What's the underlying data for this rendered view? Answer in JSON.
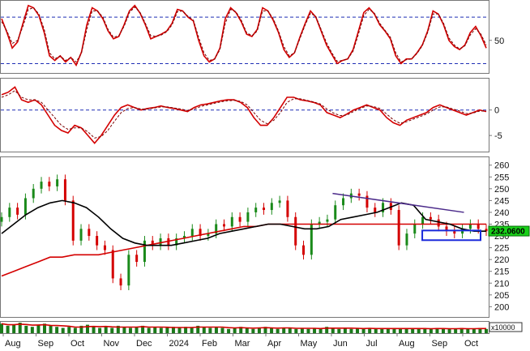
{
  "chart_data": [
    {
      "type": "line",
      "panel": "oscillator-top",
      "ylim": [
        10,
        100
      ],
      "y_ticks": [
        "50"
      ],
      "reference_lines": [
        80,
        20
      ],
      "series": [
        {
          "color": "#d40000",
          "values": [
            78,
            60,
            40,
            48,
            72,
            95,
            92,
            82,
            60,
            30,
            24,
            30,
            22,
            28,
            18,
            35,
            70,
            92,
            88,
            78,
            62,
            52,
            55,
            70,
            88,
            95,
            85,
            70,
            52,
            55,
            58,
            62,
            72,
            90,
            88,
            80,
            75,
            50,
            30,
            22,
            26,
            40,
            78,
            92,
            86,
            74,
            58,
            55,
            64,
            92,
            88,
            76,
            60,
            38,
            28,
            34,
            54,
            72,
            88,
            80,
            62,
            44,
            32,
            20,
            24,
            26,
            38,
            62,
            86,
            92,
            84,
            70,
            62,
            52,
            30,
            20,
            26,
            26,
            34,
            44,
            62,
            88,
            84,
            70,
            50,
            42,
            38,
            44,
            60,
            68,
            56,
            40
          ]
        },
        {
          "color": "#7a0000",
          "dashed": true,
          "values": [
            74,
            62,
            46,
            50,
            68,
            90,
            92,
            84,
            64,
            34,
            26,
            30,
            24,
            28,
            22,
            34,
            64,
            88,
            88,
            80,
            64,
            54,
            56,
            68,
            86,
            93,
            86,
            72,
            56,
            55,
            57,
            61,
            70,
            87,
            88,
            81,
            76,
            54,
            34,
            24,
            26,
            38,
            72,
            90,
            87,
            76,
            60,
            56,
            62,
            88,
            88,
            78,
            62,
            42,
            30,
            34,
            52,
            70,
            85,
            81,
            64,
            47,
            34,
            23,
            24,
            26,
            36,
            58,
            82,
            90,
            85,
            72,
            63,
            54,
            34,
            22,
            25,
            26,
            33,
            43,
            60,
            84,
            84,
            72,
            53,
            44,
            39,
            43,
            57,
            65,
            58,
            44
          ]
        }
      ]
    },
    {
      "type": "line",
      "panel": "oscillator-middle",
      "ylim": [
        -8,
        6
      ],
      "y_ticks": [
        "0",
        "-5"
      ],
      "reference_lines": [
        0
      ],
      "series": [
        {
          "color": "#d40000",
          "values": [
            3.0,
            3.5,
            4.5,
            2.0,
            1.5,
            2.0,
            1.0,
            -1.0,
            -3.0,
            -4.0,
            -4.5,
            -3.0,
            -3.5,
            -5.0,
            -6.5,
            -5.0,
            -3.0,
            -1.0,
            0.5,
            1.0,
            0.5,
            0.0,
            0.3,
            0.5,
            0.8,
            0.5,
            0.3,
            0.0,
            -0.3,
            0.5,
            1.0,
            1.2,
            1.5,
            1.8,
            2.0,
            2.0,
            1.5,
            0.5,
            -1.5,
            -3.0,
            -3.0,
            -1.5,
            0.5,
            2.5,
            2.5,
            2.0,
            1.8,
            1.5,
            1.0,
            -0.5,
            -1.0,
            -1.5,
            -0.8,
            0.0,
            0.5,
            1.0,
            0.5,
            0.0,
            -1.5,
            -2.5,
            -3.0,
            -2.0,
            -1.5,
            -1.0,
            -0.5,
            0.5,
            1.0,
            0.5,
            0.0,
            -0.5,
            -1.0,
            -0.5,
            0.0,
            -0.3
          ]
        },
        {
          "color": "#7a0000",
          "dashed": true,
          "values": [
            2.5,
            3.0,
            3.8,
            2.5,
            2.0,
            2.0,
            1.5,
            0.0,
            -1.5,
            -3.0,
            -3.8,
            -3.5,
            -3.5,
            -4.3,
            -5.5,
            -5.2,
            -4.0,
            -2.2,
            -0.5,
            0.3,
            0.5,
            0.2,
            0.2,
            0.4,
            0.6,
            0.6,
            0.4,
            0.2,
            -0.1,
            0.2,
            0.7,
            1.0,
            1.3,
            1.6,
            1.8,
            1.9,
            1.7,
            1.0,
            -0.5,
            -2.0,
            -2.7,
            -2.0,
            -0.5,
            1.5,
            2.2,
            2.2,
            1.9,
            1.6,
            1.2,
            0.2,
            -0.6,
            -1.1,
            -1.0,
            -0.3,
            0.3,
            0.8,
            0.7,
            0.3,
            -0.8,
            -1.9,
            -2.6,
            -2.3,
            -1.8,
            -1.3,
            -0.8,
            0.0,
            0.6,
            0.6,
            0.2,
            -0.2,
            -0.7,
            -0.6,
            -0.2,
            -0.2
          ]
        }
      ]
    },
    {
      "type": "candlestick",
      "panel": "price",
      "ylim": [
        196,
        263
      ],
      "y_ticks": [
        "260",
        "255",
        "250",
        "245",
        "240",
        "235",
        "230",
        "225",
        "220",
        "215",
        "210",
        "205",
        "200"
      ],
      "last_price_label": "232.0600",
      "ma_black": [
        231,
        235,
        239,
        242,
        244,
        245,
        244,
        242,
        238,
        233,
        229,
        227,
        226,
        226,
        226,
        227,
        228,
        229,
        231,
        232,
        233,
        234,
        235,
        235,
        234,
        233,
        233,
        234,
        237,
        238,
        239,
        240,
        242,
        244,
        243,
        237,
        236,
        235,
        233,
        232,
        232
      ],
      "ma_red": [
        213,
        215,
        217,
        219,
        221,
        221,
        222,
        222,
        222,
        223,
        224,
        225,
        226,
        227,
        228,
        229,
        230,
        231,
        232,
        233,
        234,
        234,
        235,
        235,
        235,
        235,
        235,
        235,
        235,
        235,
        235,
        235,
        235,
        235,
        235,
        235,
        235,
        235,
        235,
        235,
        235
      ],
      "trendline": {
        "from": [
          248,
          0.683
        ],
        "to": [
          240,
          0.954
        ],
        "color": "#4b2a8a"
      },
      "support_box_color": "#1a2adb",
      "closes": [
        238,
        242,
        239,
        246,
        250,
        253,
        251,
        254,
        245,
        228,
        233,
        230,
        226,
        224,
        212,
        209,
        222,
        219,
        228,
        226,
        229,
        226,
        229,
        230,
        233,
        230,
        231,
        235,
        234,
        238,
        236,
        240,
        242,
        241,
        244,
        245,
        238,
        226,
        222,
        235,
        236,
        237,
        243,
        246,
        248,
        247,
        242,
        240,
        244,
        241,
        226,
        231,
        235,
        238,
        237,
        234,
        232,
        231,
        233,
        235,
        233,
        232
      ]
    },
    {
      "type": "bar",
      "panel": "volume",
      "unit_label": "x10000",
      "bar_color": "#1a7a1a",
      "ma_color": "#d40000",
      "values": [
        9,
        7,
        8,
        10,
        7,
        6,
        8,
        9,
        7,
        6,
        5,
        6,
        5,
        7,
        8,
        6,
        5,
        6,
        5,
        7,
        6,
        5,
        6,
        7,
        5,
        6,
        5,
        5,
        6,
        5,
        6,
        5,
        7,
        6,
        5,
        6,
        5,
        4,
        5,
        6,
        5,
        4,
        5,
        6,
        5,
        4,
        5,
        5,
        4,
        5,
        4,
        5,
        4,
        6,
        5,
        4,
        5,
        4,
        5,
        4,
        5,
        4,
        4,
        5,
        4,
        5,
        4,
        4,
        5,
        4,
        4,
        5,
        4,
        4,
        4,
        5,
        4,
        4,
        5,
        4
      ]
    }
  ],
  "x_axis": {
    "months": [
      "Aug",
      "Sep",
      "Oct",
      "Nov",
      "Dec",
      "2024",
      "Feb",
      "Mar",
      "Apr",
      "May",
      "Jun",
      "Jul",
      "Aug",
      "Sep",
      "Oct"
    ]
  }
}
